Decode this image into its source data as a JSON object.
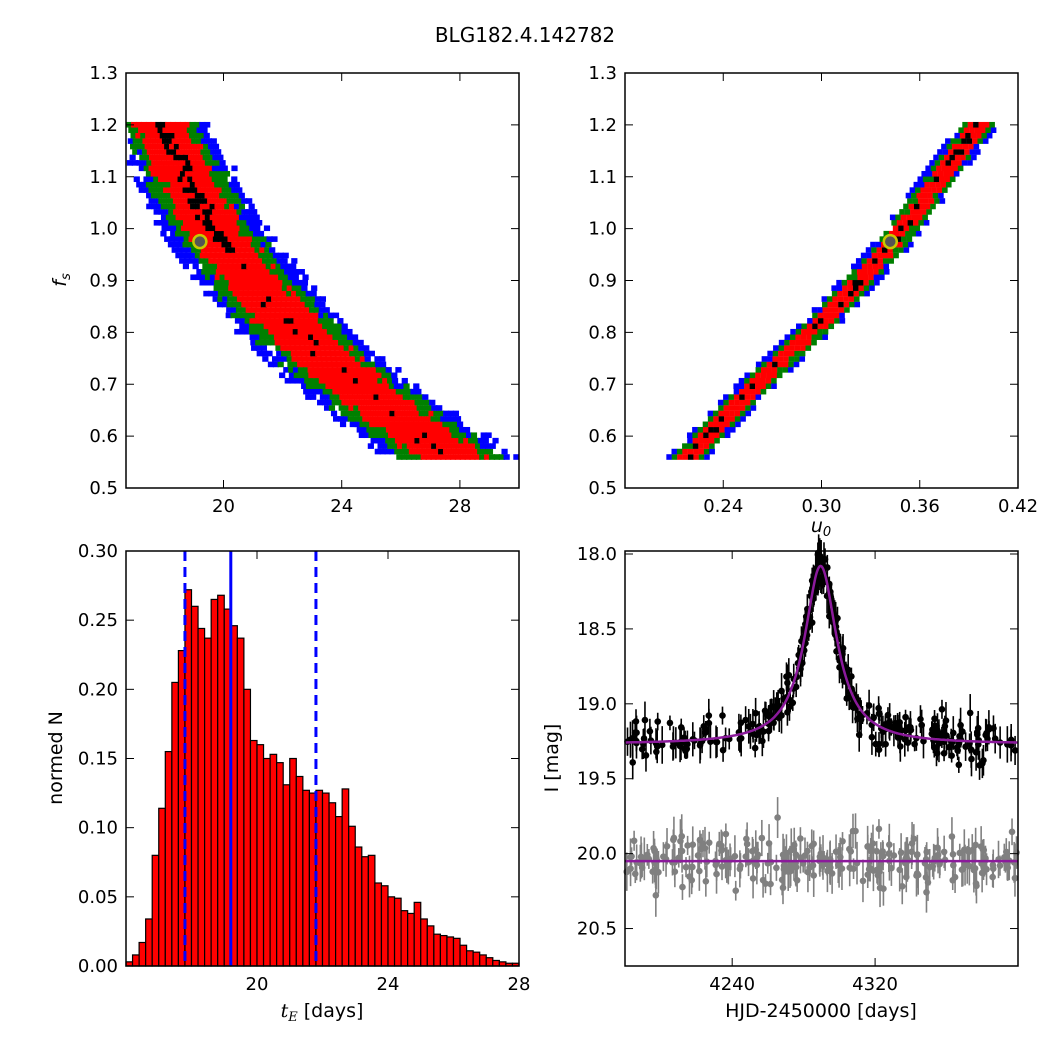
{
  "title": "BLG182.4.142782",
  "colors": {
    "c95": "#0000ff",
    "c68": "#008000",
    "c38": "#ff0000",
    "cbest": "#000000",
    "marker": "#c8c800",
    "model": "#8b1a9b",
    "data": "#000000",
    "baseline": "#808080",
    "hist": "#ff0000",
    "vline": "#0000ff"
  },
  "panels": {
    "tl": {
      "ylabel_sym": "f",
      "ylabel_sub": "s",
      "xticks": [
        "20",
        "24",
        "28"
      ],
      "yticks": [
        "0.5",
        "0.6",
        "0.7",
        "0.8",
        "0.9",
        "1.0",
        "1.1",
        "1.2",
        "1.3"
      ]
    },
    "tr": {
      "xlabel_sym": "u",
      "xlabel_sub": "0",
      "xticks": [
        "0.24",
        "0.30",
        "0.36",
        "0.42"
      ],
      "yticks": [
        "0.5",
        "0.6",
        "0.7",
        "0.8",
        "0.9",
        "1.0",
        "1.1",
        "1.2",
        "1.3"
      ]
    },
    "bl": {
      "xlabel_sym": "t",
      "xlabel_sub": "E",
      "xlabel_unit": " [days]",
      "ylabel": "normed N",
      "xticks": [
        "20",
        "24",
        "28"
      ],
      "yticks": [
        "0.00",
        "0.05",
        "0.10",
        "0.15",
        "0.20",
        "0.25",
        "0.30"
      ]
    },
    "br": {
      "xlabel": "HJD-2450000 [days]",
      "ylabel": "I [mag]",
      "xticks": [
        "4240",
        "4320"
      ],
      "yticks": [
        "18.0",
        "18.5",
        "19.0",
        "19.5",
        "20.0",
        "20.5"
      ]
    }
  },
  "chart_data": [
    {
      "type": "heatmap",
      "panel": "tl",
      "x_param": "tE [days]",
      "y_param": "fs",
      "xlim": [
        16.7,
        30.0
      ],
      "ylim": [
        0.5,
        1.3
      ],
      "ridge": {
        "x": [
          17.8,
          18.6,
          19.5,
          20.8,
          22.3,
          24.2,
          27.7
        ],
        "y": [
          1.2,
          1.1,
          1.0,
          0.9,
          0.8,
          0.7,
          0.55
        ]
      },
      "contour_widths_tE": {
        "c38": 0.85,
        "c68": 1.2,
        "c95": 1.55
      },
      "best_fit": {
        "tE": 19.2,
        "fs": 0.975
      },
      "contour_levels": [
        "c38",
        "c68",
        "c95"
      ]
    },
    {
      "type": "heatmap",
      "panel": "tr",
      "x_param": "u0",
      "y_param": "fs",
      "xlim": [
        0.18,
        0.42
      ],
      "ylim": [
        0.5,
        1.3
      ],
      "ridge": {
        "x": [
          0.215,
          0.26,
          0.3,
          0.34,
          0.395
        ],
        "y": [
          0.55,
          0.7,
          0.82,
          0.96,
          1.2
        ]
      },
      "contour_widths_u0": {
        "c38": 0.006,
        "c68": 0.009,
        "c95": 0.012
      },
      "best_fit": {
        "u0": 0.342,
        "fs": 0.975
      }
    },
    {
      "type": "bar",
      "panel": "bl",
      "xlim": [
        16.0,
        28.0
      ],
      "ylim": [
        0.0,
        0.3
      ],
      "bin_width": 0.2,
      "bin_start": 16.0,
      "values": [
        0.003,
        0.008,
        0.017,
        0.034,
        0.08,
        0.114,
        0.155,
        0.205,
        0.228,
        0.272,
        0.26,
        0.244,
        0.237,
        0.265,
        0.268,
        0.258,
        0.246,
        0.237,
        0.2,
        0.163,
        0.16,
        0.15,
        0.153,
        0.147,
        0.131,
        0.15,
        0.137,
        0.127,
        0.125,
        0.127,
        0.125,
        0.118,
        0.108,
        0.128,
        0.101,
        0.086,
        0.079,
        0.08,
        0.06,
        0.058,
        0.05,
        0.049,
        0.04,
        0.038,
        0.046,
        0.034,
        0.029,
        0.023,
        0.022,
        0.021,
        0.02,
        0.015,
        0.011,
        0.01,
        0.008,
        0.006,
        0.004,
        0.003,
        0.002,
        0.002,
        0.001,
        0.001,
        0.001,
        0.001,
        0.001,
        0.0005,
        0.0005,
        0.0005,
        0.0003,
        0.0003,
        0.0002,
        0.0002
      ],
      "vlines": {
        "median": 19.2,
        "lower": 17.8,
        "upper": 21.8
      }
    },
    {
      "type": "scatter",
      "panel": "br",
      "xlabel": "HJD-2450000 [days]",
      "ylabel": "I [mag]",
      "xlim": [
        4180,
        4400
      ],
      "ylim": [
        20.75,
        17.98
      ],
      "model": {
        "t0": 4289.5,
        "base": 19.27,
        "peak": 18.08,
        "width": 11.0,
        "resid_base": 20.05
      },
      "series": [
        {
          "name": "",
          "t_range": [
            4180,
            4400
          ],
          "n": 330,
          "scatter": 0.07,
          "errbar": 0.09
        },
        {
          "name": "",
          "t_range": [
            4180,
            4400
          ],
          "n": 260,
          "scatter": 0.08,
          "errbar": 0.1,
          "offset": 0.78
        }
      ]
    }
  ]
}
